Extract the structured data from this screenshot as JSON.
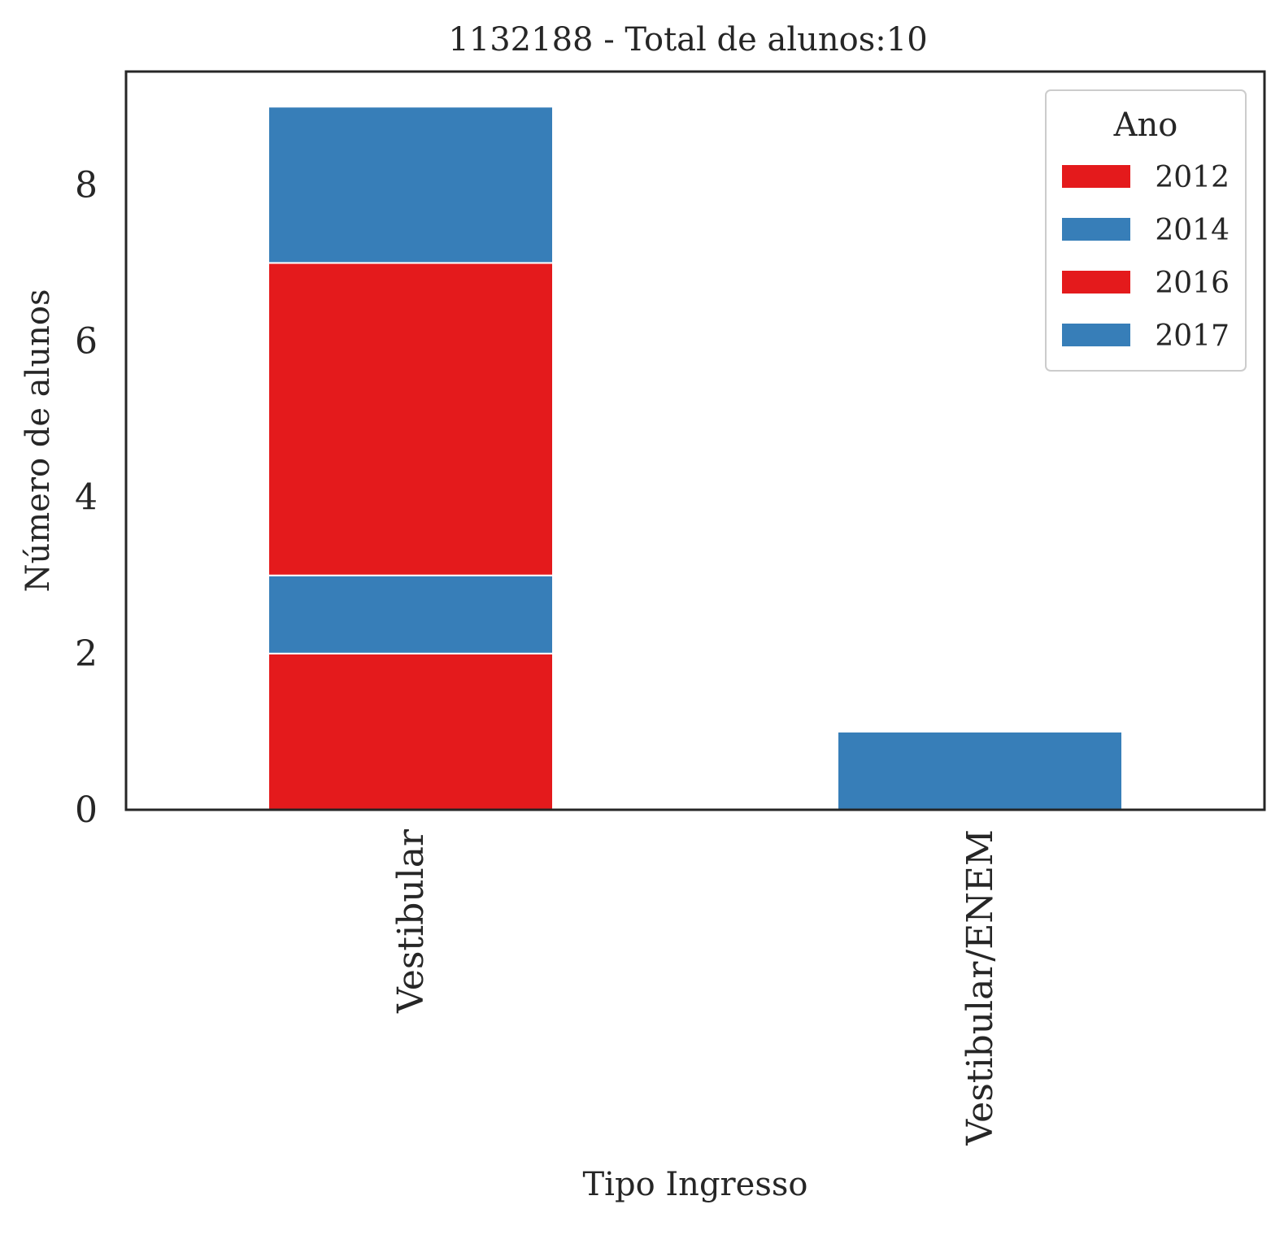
{
  "chart_data": {
    "type": "bar",
    "stacked": true,
    "title": "1132188 - Total de alunos:10",
    "xlabel": "Tipo Ingresso",
    "ylabel": "Número de alunos",
    "categories": [
      "Vestibular",
      "Vestibular/ENEM"
    ],
    "series": [
      {
        "name": "2012",
        "values": [
          2,
          0
        ],
        "color": "#e41a1c"
      },
      {
        "name": "2014",
        "values": [
          1,
          0
        ],
        "color": "#377eb8"
      },
      {
        "name": "2016",
        "values": [
          4,
          0
        ],
        "color": "#e41a1c"
      },
      {
        "name": "2017",
        "values": [
          2,
          1
        ],
        "color": "#377eb8"
      }
    ],
    "ylim": [
      0,
      9.45
    ],
    "yticks": [
      0,
      2,
      4,
      6,
      8
    ],
    "legend": {
      "title": "Ano",
      "position": "top-right"
    },
    "grid": false
  }
}
